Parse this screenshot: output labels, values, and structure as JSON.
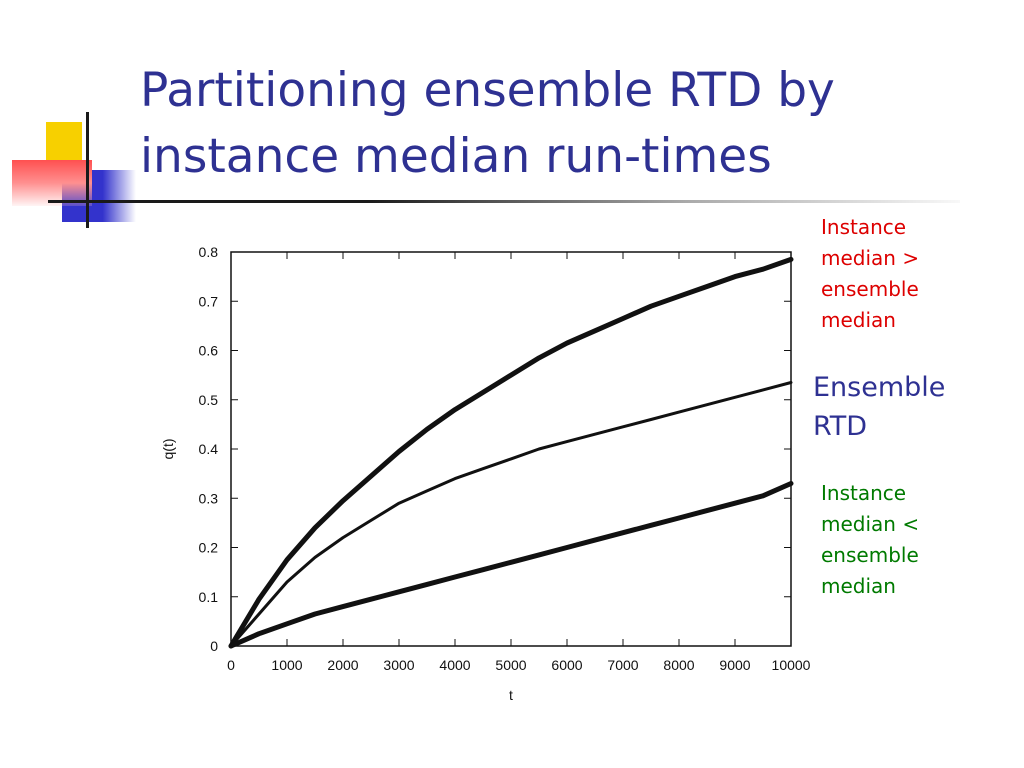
{
  "slide": {
    "title": "Partitioning ensemble RTD by instance median run-times"
  },
  "annotations": {
    "upper": "Instance\nmedian >\nensemble\nmedian",
    "middle": "Ensemble\nRTD",
    "lower": "Instance\nmedian <\nensemble\nmedian"
  },
  "colors": {
    "title": "#2e3192",
    "upper_label": "#dd0000",
    "middle_label": "#2e3192",
    "lower_label": "#007a00",
    "curves": "#111111"
  },
  "chart_data": {
    "type": "line",
    "xlabel": "t",
    "ylabel": "q(t)",
    "xlim": [
      0,
      10000
    ],
    "ylim": [
      0,
      0.8
    ],
    "xticks": [
      "0",
      "1000",
      "2000",
      "3000",
      "4000",
      "5000",
      "6000",
      "7000",
      "8000",
      "9000",
      "10000"
    ],
    "yticks": [
      "0",
      "0.1",
      "0.2",
      "0.3",
      "0.4",
      "0.5",
      "0.6",
      "0.7",
      "0.8"
    ],
    "grid": false,
    "x": [
      0,
      500,
      1000,
      1500,
      2000,
      2500,
      3000,
      3500,
      4000,
      4500,
      5000,
      5500,
      6000,
      6500,
      7000,
      7500,
      8000,
      8500,
      9000,
      9500,
      10000
    ],
    "series": [
      {
        "values": [
          0,
          0.095,
          0.175,
          0.24,
          0.295,
          0.345,
          0.395,
          0.44,
          0.48,
          0.515,
          0.55,
          0.585,
          0.615,
          0.64,
          0.665,
          0.69,
          0.71,
          0.73,
          0.75,
          0.765,
          0.785
        ],
        "weight": "bold"
      },
      {
        "values": [
          0,
          0.065,
          0.13,
          0.18,
          0.22,
          0.255,
          0.29,
          0.315,
          0.34,
          0.36,
          0.38,
          0.4,
          0.415,
          0.43,
          0.445,
          0.46,
          0.475,
          0.49,
          0.505,
          0.52,
          0.535
        ],
        "weight": "regular"
      },
      {
        "values": [
          0,
          0.025,
          0.045,
          0.065,
          0.08,
          0.095,
          0.11,
          0.125,
          0.14,
          0.155,
          0.17,
          0.185,
          0.2,
          0.215,
          0.23,
          0.245,
          0.26,
          0.275,
          0.29,
          0.305,
          0.33
        ],
        "weight": "bold"
      }
    ]
  }
}
